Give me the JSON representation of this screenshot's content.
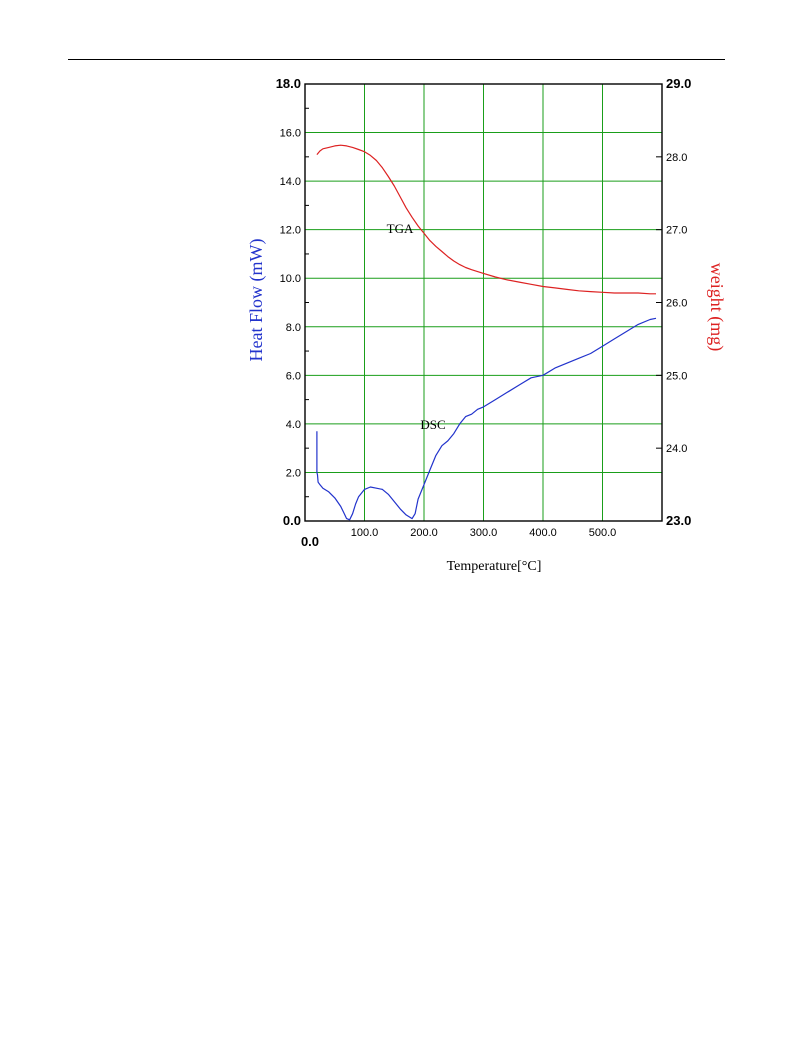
{
  "chart_data": {
    "type": "line",
    "title": "",
    "xlabel": "Temperature[°C]",
    "ylabel_left": "Heat Flow (mW)",
    "ylabel_right": "weight (mg)",
    "x_range": [
      0,
      600
    ],
    "x_ticks": [
      100,
      200,
      300,
      400,
      500
    ],
    "x_tick_labels": [
      "100.0",
      "200.0",
      "300.0",
      "400.0",
      "500.0"
    ],
    "x_origin_label": "0.0",
    "ylim_left": [
      0,
      18
    ],
    "y_ticks_left": [
      0,
      2,
      4,
      6,
      8,
      10,
      12,
      14,
      16,
      18
    ],
    "y_tick_labels_left": [
      "0.0",
      "2.0",
      "4.0",
      "6.0",
      "8.0",
      "10.0",
      "12.0",
      "14.0",
      "16.0",
      "18.0"
    ],
    "ylim_right": [
      23,
      29
    ],
    "y_ticks_right": [
      23,
      24,
      25,
      26,
      27,
      28,
      29
    ],
    "y_tick_labels_right": [
      "23.0",
      "24.0",
      "25.0",
      "26.0",
      "27.0",
      "28.0",
      "29.0"
    ],
    "grid": true,
    "grid_color": "#1a9e1a",
    "annotations": [
      "TGA",
      "DSC"
    ],
    "series": [
      {
        "name": "DSC",
        "axis": "left",
        "color": "#2233cc",
        "x": [
          20,
          20,
          21,
          22,
          25,
          30,
          40,
          50,
          60,
          65,
          70,
          75,
          80,
          85,
          90,
          100,
          110,
          120,
          130,
          140,
          150,
          160,
          170,
          180,
          185,
          190,
          200,
          210,
          220,
          230,
          240,
          250,
          260,
          270,
          280,
          290,
          300,
          320,
          340,
          360,
          380,
          400,
          420,
          440,
          460,
          480,
          500,
          520,
          540,
          560,
          580,
          590
        ],
        "y": [
          3.7,
          2.0,
          1.9,
          1.6,
          1.5,
          1.35,
          1.2,
          0.95,
          0.6,
          0.35,
          0.1,
          0.05,
          0.3,
          0.7,
          1.0,
          1.3,
          1.4,
          1.35,
          1.3,
          1.1,
          0.8,
          0.5,
          0.25,
          0.1,
          0.3,
          0.9,
          1.5,
          2.1,
          2.7,
          3.1,
          3.3,
          3.6,
          4.0,
          4.3,
          4.4,
          4.6,
          4.7,
          5.0,
          5.3,
          5.6,
          5.9,
          6.0,
          6.3,
          6.5,
          6.7,
          6.9,
          7.2,
          7.5,
          7.8,
          8.1,
          8.3,
          8.35
        ]
      },
      {
        "name": "TGA",
        "axis": "right",
        "color": "#dd2222",
        "x": [
          20,
          25,
          30,
          40,
          50,
          60,
          70,
          80,
          90,
          100,
          110,
          120,
          130,
          140,
          150,
          160,
          170,
          180,
          190,
          200,
          210,
          220,
          230,
          240,
          250,
          260,
          270,
          280,
          300,
          320,
          340,
          360,
          380,
          400,
          420,
          440,
          460,
          480,
          500,
          520,
          540,
          560,
          580,
          590
        ],
        "y": [
          28.03,
          28.08,
          28.11,
          28.13,
          28.15,
          28.16,
          28.15,
          28.13,
          28.1,
          28.07,
          28.02,
          27.95,
          27.85,
          27.73,
          27.6,
          27.45,
          27.3,
          27.17,
          27.05,
          26.95,
          26.85,
          26.77,
          26.7,
          26.63,
          26.57,
          26.52,
          26.48,
          26.45,
          26.4,
          26.35,
          26.31,
          26.28,
          26.25,
          26.22,
          26.2,
          26.18,
          26.16,
          26.15,
          26.14,
          26.13,
          26.13,
          26.13,
          26.12,
          26.12
        ]
      }
    ]
  }
}
